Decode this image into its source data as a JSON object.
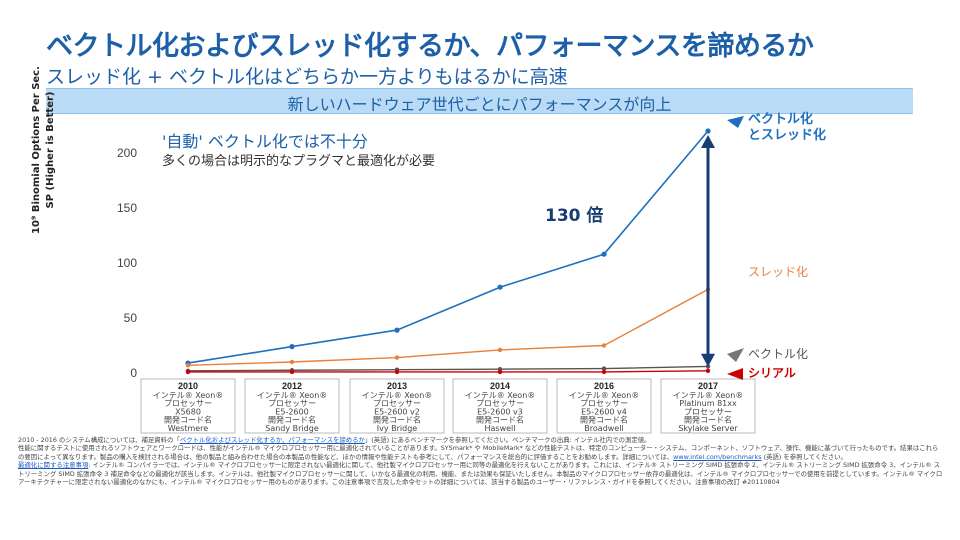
{
  "header": {
    "title": "ベクトル化およびスレッド化するか、パフォーマンスを諦めるか",
    "subtitle": "スレッド化 + ベクトル化はどちらか一方よりもはるかに高速",
    "banner": "新しいハードウェア世代ごとにパフォーマンスが向上"
  },
  "notes": {
    "auto_vec": "'自動' ベクトル化では不十分",
    "pragma": "多くの場合は明示的なプラグマと最適化が必要",
    "speedup": "130 倍"
  },
  "chart_data": {
    "type": "line",
    "ylabel": "10⁹ Binomial Options Per Sec. SP (Higher is Better)",
    "ylim": [
      0,
      220
    ],
    "yticks": [
      0,
      50,
      100,
      150,
      200
    ],
    "ytick_labels": [
      "0",
      "50",
      "100",
      "150",
      "200"
    ],
    "grid": false,
    "x": [
      "2010",
      "2012",
      "2013",
      "2014",
      "2016",
      "2017"
    ],
    "x_details": [
      [
        "インテル® Xeon®",
        "プロセッサー",
        "X5680",
        "開発コード名",
        "Westmere"
      ],
      [
        "インテル® Xeon®",
        "プロセッサー",
        "E5-2600",
        "開発コード名",
        "Sandy Bridge"
      ],
      [
        "インテル® Xeon®",
        "プロセッサー",
        "E5-2600 v2",
        "開発コード名",
        "Ivy Bridge"
      ],
      [
        "インテル® Xeon®",
        "プロセッサー",
        "E5-2600 v3",
        "開発コード名",
        "Haswell"
      ],
      [
        "インテル® Xeon®",
        "プロセッサー",
        "E5-2600 v4",
        "開発コード名",
        "Broadwell"
      ],
      [
        "インテル® Xeon®",
        "Platinum 81xx",
        "プロセッサー",
        "開発コード名",
        "Skylake Server"
      ]
    ],
    "series": [
      {
        "name": "ベクトル化とスレッド化",
        "label_lines": [
          "ベクトル化",
          "とスレッド化"
        ],
        "color": "#1d6fc0",
        "values": [
          9,
          24,
          39,
          78,
          108,
          220
        ]
      },
      {
        "name": "スレッド化",
        "label_lines": [
          "スレッド化"
        ],
        "color": "#e8803a",
        "values": [
          7,
          10,
          14,
          21,
          25,
          76
        ]
      },
      {
        "name": "ベクトル化",
        "label_lines": [
          "ベクトル化"
        ],
        "color": "#555555",
        "values": [
          2,
          2.5,
          3,
          3.5,
          4,
          6
        ]
      },
      {
        "name": "シリアル",
        "label_lines": [
          "シリアル"
        ],
        "color": "#cc0000",
        "values": [
          1,
          1,
          1,
          1,
          1,
          2
        ]
      }
    ]
  },
  "footer": {
    "line1_a": "2010 - 2016 のシステム構成については、補足資料の「",
    "line1_link": "ベクトル化およびスレッド化するか、パフォーマンスを諦めるか",
    "line1_b": "」(英語) にあるベンチマークを参照してください。ベンチマークの出典: インテル社内での測定値。",
    "line2": "性能に関するテストに使用されるソフトウェアとワークロードは、性能がインテル® マイクロプロセッサー用に最適化されていることがあります。SYSmark* や MobileMark* などの性能テストは、特定のコンピューター・システム、コンポーネント、ソフトウェア、操作、機能に基づいて行ったものです。結果はこれらの要因によって異なります。製品の購入を検討される場合は、他の製品と組み合わせた場合の本製品の性能など、ほかの情報や性能テストも参考にして、パフォーマンスを総合的に評価することをお勧めします。詳細については、",
    "link2": "www.intel.com/benchmarks",
    "line2_tail": " (英語) を参照してください。",
    "link3": "最適化に関する注意事項",
    "line3": ": インテル® コンパイラーでは、インテル® マイクロプロセッサーに限定されない最適化に関して、他社製マイクロプロセッサー用に同等の最適化を行えないことがあります。これには、インテル® ストリーミング SIMD 拡張命令 2、インテル® ストリーミング SIMD 拡張命令 3、インテル® ストリーミング SIMD 拡張命令 3 補足命令などの最適化が該当します。インテルは、他社製マイクロプロセッサーに関して、いかなる最適化の利用、機能、または効果も保証いたしません。本製品のマイクロプロセッサー依存の最適化は、インテル® マイクロプロセッサーでの使用を前提としています。インテル® マイクロアーキテクチャーに限定されない最適化のなかにも、インテル® マイクロプロセッサー用のものがあります。この注意事項で言及した命令セットの詳細については、該当する製品のユーザー・リファレンス・ガイドを参照してください。注意事項の改訂 #20110804"
  }
}
